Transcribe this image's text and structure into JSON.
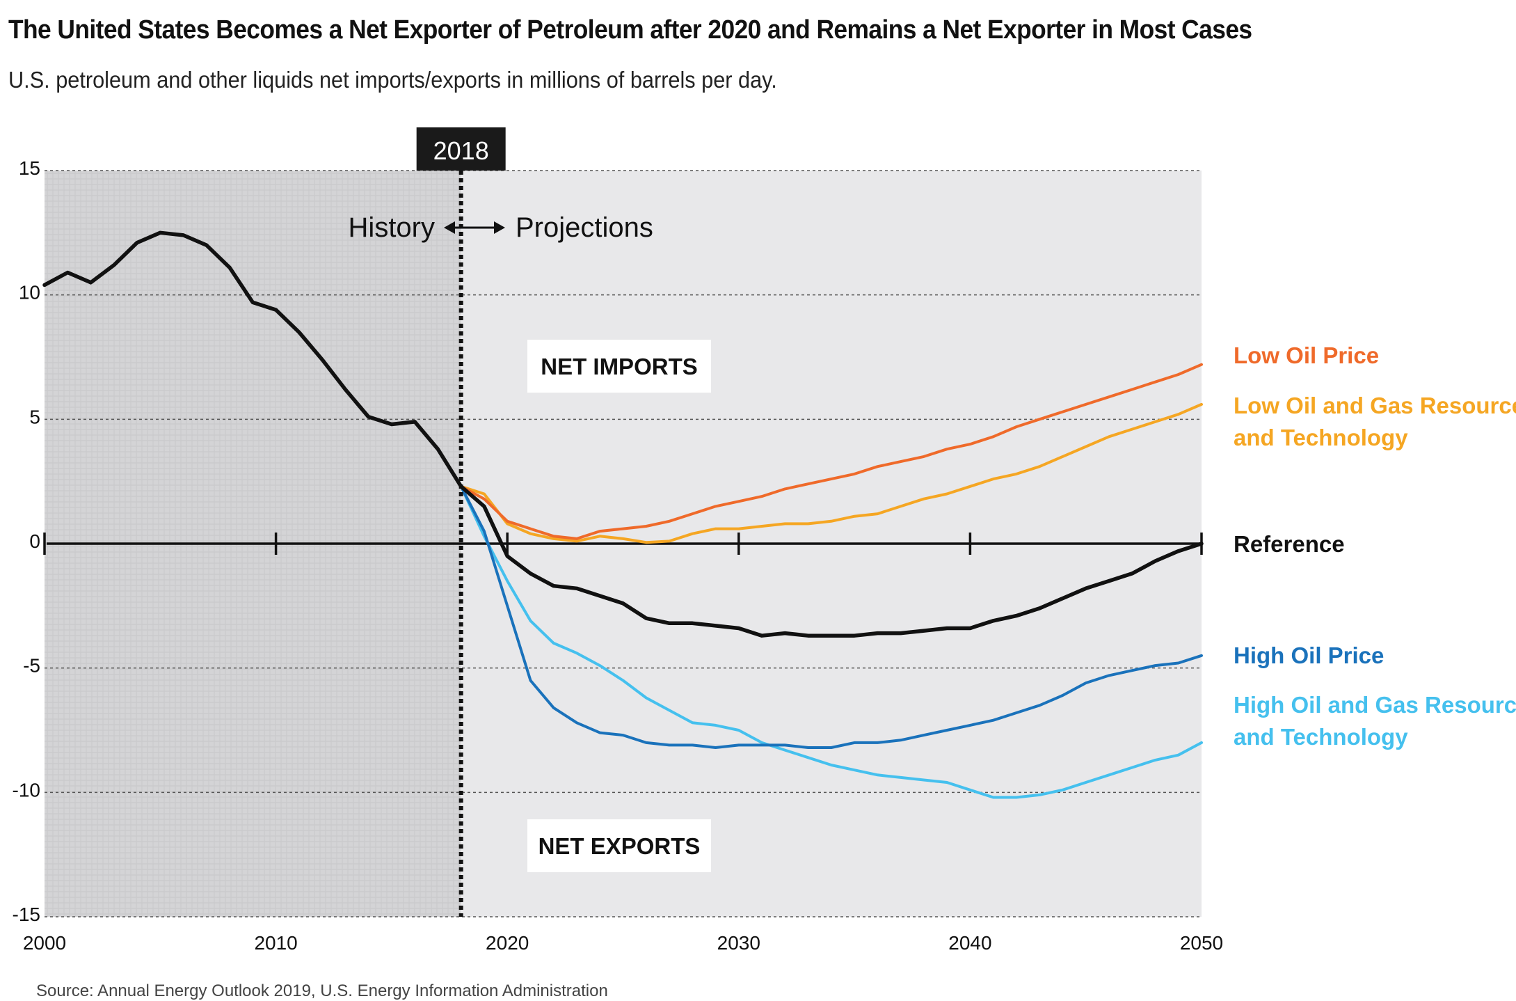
{
  "title": "The United States Becomes a Net Exporter of Petroleum after 2020 and Remains a Net Exporter in Most Cases",
  "subtitle": "U.S. petroleum and other liquids net imports/exports in millions of barrels per day.",
  "source": "Source: Annual Energy Outlook 2019, U.S. Energy Information Administration",
  "colors": {
    "reference": "#111111",
    "low_oil_price": "#ef6a2a",
    "low_resource": "#f5a623",
    "high_oil_price": "#1a72bb",
    "high_resource": "#45c0ee",
    "history_bg": "#d4d4d6",
    "projection_bg": "#e8e8ea"
  },
  "chart_data": {
    "type": "line",
    "title": "The United States Becomes a Net Exporter of Petroleum after 2020 and Remains a Net Exporter in Most Cases",
    "xlabel": "",
    "ylabel": "",
    "xlim": [
      2000,
      2050
    ],
    "ylim": [
      -15,
      15
    ],
    "xticks": [
      2000,
      2010,
      2020,
      2030,
      2040,
      2050
    ],
    "yticks": [
      15,
      10,
      5,
      0,
      -5,
      -10,
      -15
    ],
    "grid": true,
    "divider_year": 2018,
    "divider_label": "2018",
    "history_label": "History",
    "projections_label": "Projections",
    "net_imports_label": "NET IMPORTS",
    "net_exports_label": "NET EXPORTS",
    "series": [
      {
        "key": "reference",
        "name": "Reference",
        "x": [
          2000,
          2001,
          2002,
          2003,
          2004,
          2005,
          2006,
          2007,
          2008,
          2009,
          2010,
          2011,
          2012,
          2013,
          2014,
          2015,
          2016,
          2017,
          2018,
          2019,
          2020,
          2021,
          2022,
          2023,
          2024,
          2025,
          2026,
          2027,
          2028,
          2029,
          2030,
          2031,
          2032,
          2033,
          2034,
          2035,
          2036,
          2037,
          2038,
          2039,
          2040,
          2041,
          2042,
          2043,
          2044,
          2045,
          2046,
          2047,
          2048,
          2049,
          2050
        ],
        "values": [
          10.4,
          10.9,
          10.5,
          11.2,
          12.1,
          12.5,
          12.4,
          12.0,
          11.1,
          9.7,
          9.4,
          8.5,
          7.4,
          6.2,
          5.1,
          4.8,
          4.9,
          3.8,
          2.3,
          1.5,
          -0.5,
          -1.2,
          -1.7,
          -1.8,
          -2.1,
          -2.4,
          -3.0,
          -3.2,
          -3.2,
          -3.3,
          -3.4,
          -3.7,
          -3.6,
          -3.7,
          -3.7,
          -3.7,
          -3.6,
          -3.6,
          -3.5,
          -3.4,
          -3.4,
          -3.1,
          -2.9,
          -2.6,
          -2.2,
          -1.8,
          -1.5,
          -1.2,
          -0.7,
          -0.3,
          0.0
        ]
      },
      {
        "key": "low_oil_price",
        "name": "Low Oil Price",
        "x": [
          2018,
          2019,
          2020,
          2021,
          2022,
          2023,
          2024,
          2025,
          2026,
          2027,
          2028,
          2029,
          2030,
          2031,
          2032,
          2033,
          2034,
          2035,
          2036,
          2037,
          2038,
          2039,
          2040,
          2041,
          2042,
          2043,
          2044,
          2045,
          2046,
          2047,
          2048,
          2049,
          2050
        ],
        "values": [
          2.3,
          1.8,
          0.9,
          0.6,
          0.3,
          0.2,
          0.5,
          0.6,
          0.7,
          0.9,
          1.2,
          1.5,
          1.7,
          1.9,
          2.2,
          2.4,
          2.6,
          2.8,
          3.1,
          3.3,
          3.5,
          3.8,
          4.0,
          4.3,
          4.7,
          5.0,
          5.3,
          5.6,
          5.9,
          6.2,
          6.5,
          6.8,
          7.2
        ]
      },
      {
        "key": "low_resource",
        "name": "Low Oil and Gas Resource and Technology",
        "name_line1": "Low Oil and Gas Resource",
        "name_line2": "and Technology",
        "x": [
          2018,
          2019,
          2020,
          2021,
          2022,
          2023,
          2024,
          2025,
          2026,
          2027,
          2028,
          2029,
          2030,
          2031,
          2032,
          2033,
          2034,
          2035,
          2036,
          2037,
          2038,
          2039,
          2040,
          2041,
          2042,
          2043,
          2044,
          2045,
          2046,
          2047,
          2048,
          2049,
          2050
        ],
        "values": [
          2.3,
          2.0,
          0.8,
          0.4,
          0.2,
          0.1,
          0.3,
          0.2,
          0.05,
          0.1,
          0.4,
          0.6,
          0.6,
          0.7,
          0.8,
          0.8,
          0.9,
          1.1,
          1.2,
          1.5,
          1.8,
          2.0,
          2.3,
          2.6,
          2.8,
          3.1,
          3.5,
          3.9,
          4.3,
          4.6,
          4.9,
          5.2,
          5.6
        ]
      },
      {
        "key": "high_oil_price",
        "name": "High Oil Price",
        "x": [
          2018,
          2019,
          2020,
          2021,
          2022,
          2023,
          2024,
          2025,
          2026,
          2027,
          2028,
          2029,
          2030,
          2031,
          2032,
          2033,
          2034,
          2035,
          2036,
          2037,
          2038,
          2039,
          2040,
          2041,
          2042,
          2043,
          2044,
          2045,
          2046,
          2047,
          2048,
          2049,
          2050
        ],
        "values": [
          2.3,
          0.5,
          -2.5,
          -5.5,
          -6.6,
          -7.2,
          -7.6,
          -7.7,
          -8.0,
          -8.1,
          -8.1,
          -8.2,
          -8.1,
          -8.1,
          -8.1,
          -8.2,
          -8.2,
          -8.0,
          -8.0,
          -7.9,
          -7.7,
          -7.5,
          -7.3,
          -7.1,
          -6.8,
          -6.5,
          -6.1,
          -5.6,
          -5.3,
          -5.1,
          -4.9,
          -4.8,
          -4.5
        ]
      },
      {
        "key": "high_resource",
        "name": "High Oil and Gas Resource and Technology",
        "name_line1": "High Oil and Gas Resource",
        "name_line2": "and Technology",
        "x": [
          2018,
          2019,
          2020,
          2021,
          2022,
          2023,
          2024,
          2025,
          2026,
          2027,
          2028,
          2029,
          2030,
          2031,
          2032,
          2033,
          2034,
          2035,
          2036,
          2037,
          2038,
          2039,
          2040,
          2041,
          2042,
          2043,
          2044,
          2045,
          2046,
          2047,
          2048,
          2049,
          2050
        ],
        "values": [
          2.3,
          0.3,
          -1.5,
          -3.1,
          -4.0,
          -4.4,
          -4.9,
          -5.5,
          -6.2,
          -6.7,
          -7.2,
          -7.3,
          -7.5,
          -8.0,
          -8.3,
          -8.6,
          -8.9,
          -9.1,
          -9.3,
          -9.4,
          -9.5,
          -9.6,
          -9.9,
          -10.2,
          -10.2,
          -10.1,
          -9.9,
          -9.6,
          -9.3,
          -9.0,
          -8.7,
          -8.5,
          -8.0
        ]
      }
    ]
  }
}
